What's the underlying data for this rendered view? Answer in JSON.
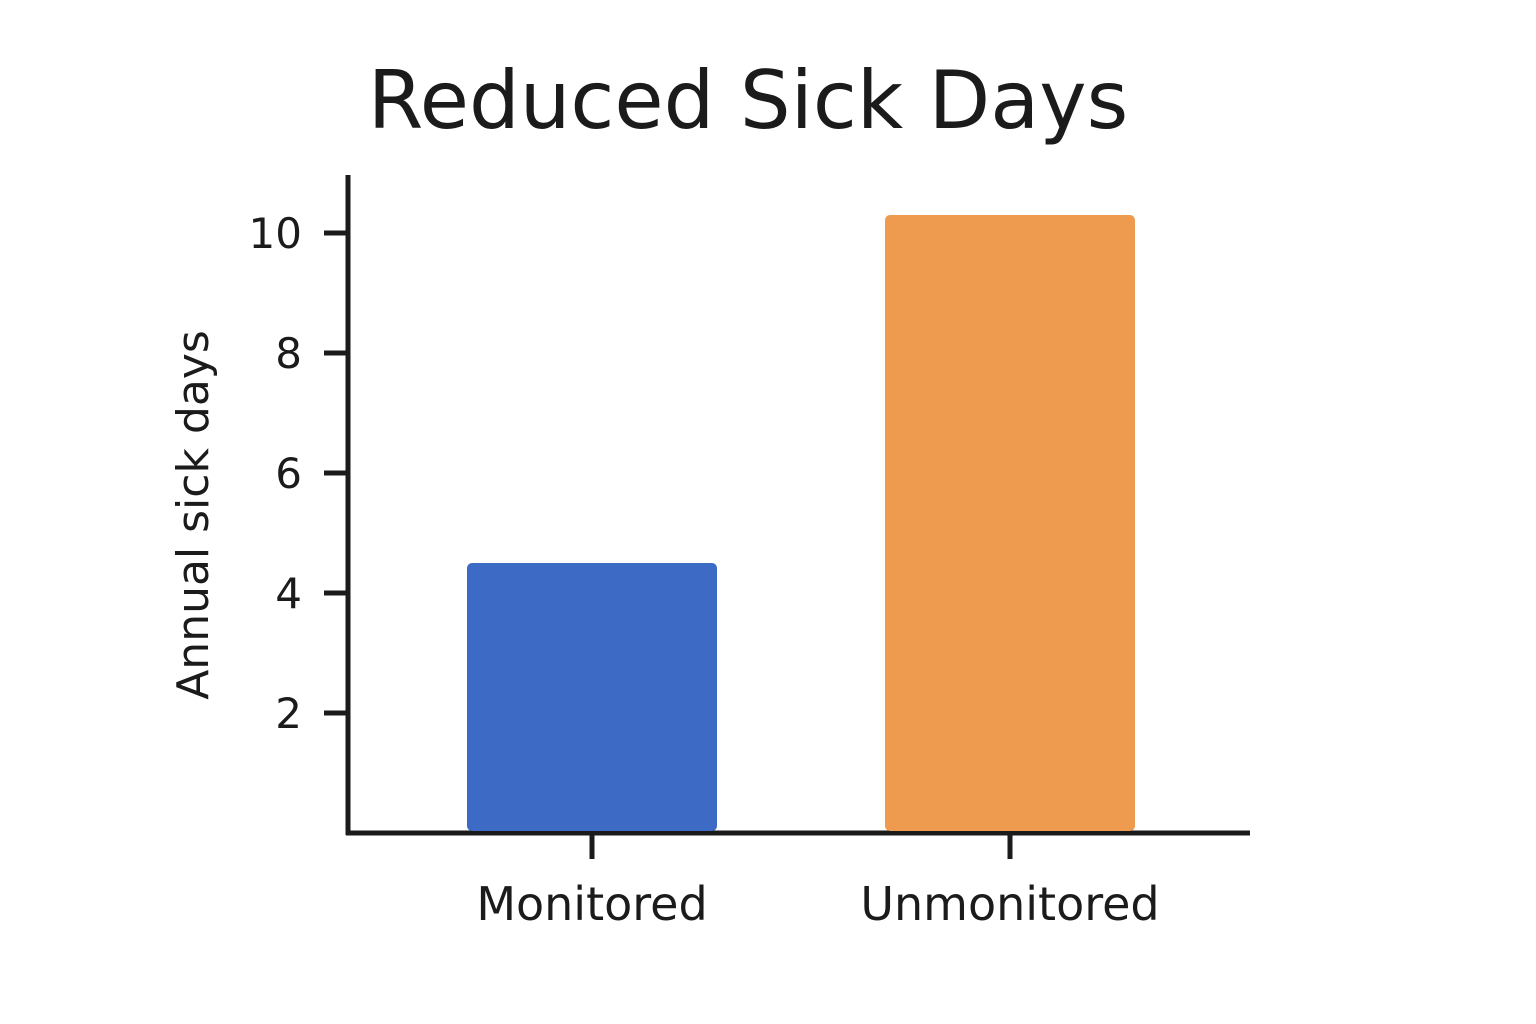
{
  "chart_data": {
    "type": "bar",
    "title": "Reduced Sick Days",
    "xlabel": "",
    "ylabel": "Annual sick days",
    "categories": [
      "Monitored",
      "Unmonitored"
    ],
    "values": [
      4.5,
      10.3
    ],
    "colors": [
      "#3d6ac4",
      "#ee9b50"
    ],
    "yticks": [
      2,
      4,
      6,
      8,
      10
    ],
    "ylim": [
      0,
      11
    ],
    "grid": false,
    "legend": "none"
  }
}
